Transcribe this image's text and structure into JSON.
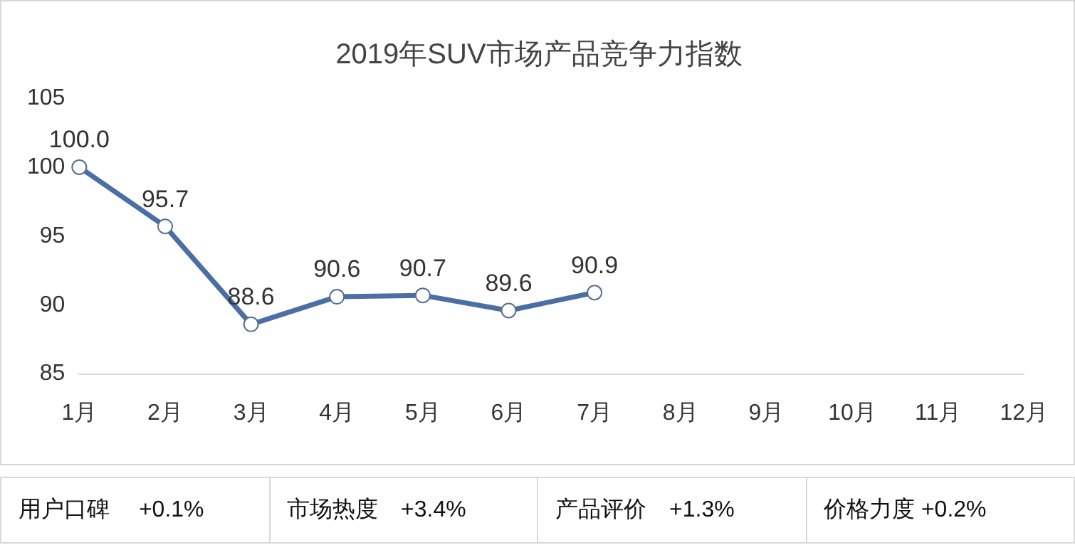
{
  "chart_data": {
    "type": "line",
    "title": "2019年SUV市场产品竞争力指数",
    "categories": [
      "1月",
      "2月",
      "3月",
      "4月",
      "5月",
      "6月",
      "7月",
      "8月",
      "9月",
      "10月",
      "11月",
      "12月"
    ],
    "series": [
      {
        "color": "#4a6fa5",
        "values": [
          100.0,
          95.7,
          88.6,
          90.6,
          90.7,
          89.6,
          90.9,
          null,
          null,
          null,
          null,
          null
        ],
        "value_labels": [
          "100.0",
          "95.7",
          "88.6",
          "90.6",
          "90.7",
          "89.6",
          "90.9",
          null,
          null,
          null,
          null,
          null
        ]
      }
    ],
    "ylim": [
      85,
      105
    ],
    "yticks": [
      85,
      90,
      95,
      100,
      105
    ],
    "grid": false,
    "legend": false,
    "marker": "circle",
    "line_style": "solid",
    "annotations": [
      "用户口碑　 +0.1%",
      "市场热度　+3.4%",
      "产品评价　+1.3%",
      "价格力度 +0.2%"
    ]
  }
}
